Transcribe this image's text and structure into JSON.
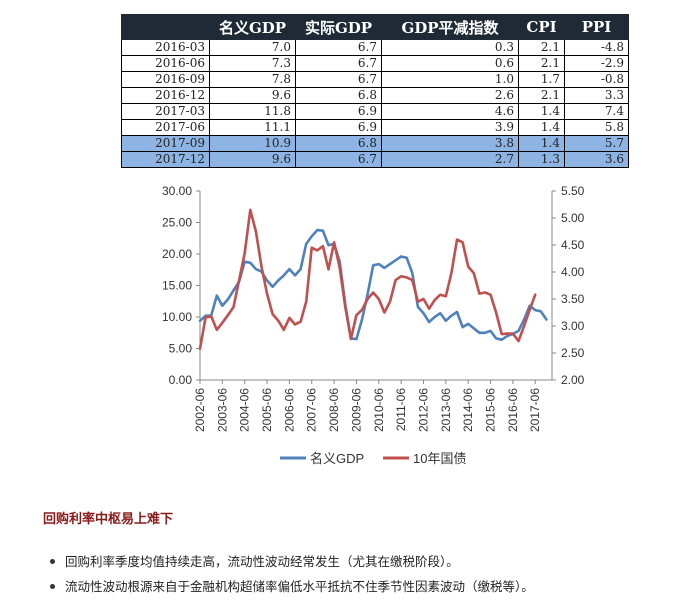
{
  "table": {
    "columns": [
      "",
      "名义GDP",
      "实际GDP",
      "GDP平减指数",
      "CPI",
      "PPI"
    ],
    "rows": [
      {
        "period": "2016-03",
        "nominal_gdp": "7.0",
        "real_gdp": "6.7",
        "deflator": "0.3",
        "cpi": "2.1",
        "ppi": "-4.8",
        "highlight": false
      },
      {
        "period": "2016-06",
        "nominal_gdp": "7.3",
        "real_gdp": "6.7",
        "deflator": "0.6",
        "cpi": "2.1",
        "ppi": "-2.9",
        "highlight": false
      },
      {
        "period": "2016-09",
        "nominal_gdp": "7.8",
        "real_gdp": "6.7",
        "deflator": "1.0",
        "cpi": "1.7",
        "ppi": "-0.8",
        "highlight": false
      },
      {
        "period": "2016-12",
        "nominal_gdp": "9.6",
        "real_gdp": "6.8",
        "deflator": "2.6",
        "cpi": "2.1",
        "ppi": "3.3",
        "highlight": false
      },
      {
        "period": "2017-03",
        "nominal_gdp": "11.8",
        "real_gdp": "6.9",
        "deflator": "4.6",
        "cpi": "1.4",
        "ppi": "7.4",
        "highlight": false
      },
      {
        "period": "2017-06",
        "nominal_gdp": "11.1",
        "real_gdp": "6.9",
        "deflator": "3.9",
        "cpi": "1.4",
        "ppi": "5.8",
        "highlight": false
      },
      {
        "period": "2017-09",
        "nominal_gdp": "10.9",
        "real_gdp": "6.8",
        "deflator": "3.8",
        "cpi": "1.4",
        "ppi": "5.7",
        "highlight": true
      },
      {
        "period": "2017-12",
        "nominal_gdp": "9.6",
        "real_gdp": "6.7",
        "deflator": "2.7",
        "cpi": "1.3",
        "ppi": "3.6",
        "highlight": true
      }
    ]
  },
  "chart_data": {
    "type": "line",
    "title": "",
    "x_tick_labels": [
      "2002-06",
      "2003-06",
      "2004-06",
      "2005-06",
      "2006-06",
      "2007-06",
      "2008-06",
      "2009-06",
      "2010-06",
      "2011-06",
      "2012-06",
      "2013-06",
      "2014-06",
      "2015-06",
      "2016-06",
      "2017-06"
    ],
    "x_range": [
      2002.25,
      2018.0
    ],
    "y_left": {
      "min": 0,
      "max": 30,
      "step": 5,
      "tick_labels": [
        "0.00",
        "5.00",
        "10.00",
        "15.00",
        "20.00",
        "25.00",
        "30.00"
      ]
    },
    "y_right": {
      "min": 2.0,
      "max": 5.5,
      "step": 0.5,
      "tick_labels": [
        "2.00",
        "2.50",
        "3.00",
        "3.50",
        "4.00",
        "4.50",
        "5.00",
        "5.50"
      ]
    },
    "legend_position": "bottom",
    "grid": false,
    "series": [
      {
        "name": "名义GDP",
        "axis": "left",
        "color": "#4f81bd",
        "points": [
          [
            2002.25,
            9.4
          ],
          [
            2002.5,
            10.2
          ],
          [
            2002.75,
            10.2
          ],
          [
            2003.0,
            13.4
          ],
          [
            2003.25,
            11.8
          ],
          [
            2003.5,
            12.8
          ],
          [
            2003.75,
            14.2
          ],
          [
            2004.0,
            15.6
          ],
          [
            2004.25,
            18.8
          ],
          [
            2004.5,
            18.6
          ],
          [
            2004.75,
            17.6
          ],
          [
            2005.0,
            17.2
          ],
          [
            2005.25,
            15.8
          ],
          [
            2005.5,
            14.8
          ],
          [
            2005.75,
            15.8
          ],
          [
            2006.0,
            16.6
          ],
          [
            2006.25,
            17.6
          ],
          [
            2006.5,
            16.6
          ],
          [
            2006.75,
            17.6
          ],
          [
            2007.0,
            21.6
          ],
          [
            2007.25,
            22.8
          ],
          [
            2007.5,
            23.8
          ],
          [
            2007.75,
            23.7
          ],
          [
            2008.0,
            21.4
          ],
          [
            2008.25,
            21.6
          ],
          [
            2008.5,
            18.8
          ],
          [
            2008.75,
            12.0
          ],
          [
            2009.0,
            6.6
          ],
          [
            2009.25,
            6.5
          ],
          [
            2009.5,
            9.6
          ],
          [
            2009.75,
            13.6
          ],
          [
            2010.0,
            18.2
          ],
          [
            2010.25,
            18.4
          ],
          [
            2010.5,
            17.8
          ],
          [
            2010.75,
            18.4
          ],
          [
            2011.0,
            19.0
          ],
          [
            2011.25,
            19.6
          ],
          [
            2011.5,
            19.4
          ],
          [
            2011.75,
            17.0
          ],
          [
            2012.0,
            11.6
          ],
          [
            2012.25,
            10.6
          ],
          [
            2012.5,
            9.2
          ],
          [
            2012.75,
            10.0
          ],
          [
            2013.0,
            10.6
          ],
          [
            2013.25,
            9.4
          ],
          [
            2013.5,
            10.2
          ],
          [
            2013.75,
            10.8
          ],
          [
            2014.0,
            8.4
          ],
          [
            2014.25,
            8.9
          ],
          [
            2014.5,
            8.2
          ],
          [
            2014.75,
            7.5
          ],
          [
            2015.0,
            7.5
          ],
          [
            2015.25,
            7.8
          ],
          [
            2015.5,
            6.6
          ],
          [
            2015.75,
            6.4
          ],
          [
            2016.0,
            7.0
          ],
          [
            2016.25,
            7.3
          ],
          [
            2016.5,
            7.8
          ],
          [
            2016.75,
            9.6
          ],
          [
            2017.0,
            11.8
          ],
          [
            2017.25,
            11.1
          ],
          [
            2017.5,
            10.9
          ],
          [
            2017.75,
            9.6
          ]
        ]
      },
      {
        "name": "10年国债",
        "axis": "right",
        "color": "#c0504d",
        "points": [
          [
            2002.25,
            2.58
          ],
          [
            2002.5,
            3.16
          ],
          [
            2002.75,
            3.18
          ],
          [
            2003.0,
            2.93
          ],
          [
            2003.25,
            3.06
          ],
          [
            2003.5,
            3.2
          ],
          [
            2003.75,
            3.35
          ],
          [
            2004.0,
            3.85
          ],
          [
            2004.25,
            4.35
          ],
          [
            2004.5,
            5.15
          ],
          [
            2004.75,
            4.75
          ],
          [
            2005.0,
            4.1
          ],
          [
            2005.25,
            3.6
          ],
          [
            2005.5,
            3.22
          ],
          [
            2005.75,
            3.1
          ],
          [
            2006.0,
            2.93
          ],
          [
            2006.25,
            3.15
          ],
          [
            2006.5,
            3.03
          ],
          [
            2006.75,
            3.08
          ],
          [
            2007.0,
            3.45
          ],
          [
            2007.25,
            4.45
          ],
          [
            2007.5,
            4.4
          ],
          [
            2007.75,
            4.48
          ],
          [
            2008.0,
            4.05
          ],
          [
            2008.25,
            4.55
          ],
          [
            2008.5,
            4.08
          ],
          [
            2008.75,
            3.35
          ],
          [
            2009.0,
            2.76
          ],
          [
            2009.25,
            3.2
          ],
          [
            2009.5,
            3.3
          ],
          [
            2009.75,
            3.5
          ],
          [
            2010.0,
            3.62
          ],
          [
            2010.25,
            3.5
          ],
          [
            2010.5,
            3.25
          ],
          [
            2010.75,
            3.45
          ],
          [
            2011.0,
            3.85
          ],
          [
            2011.25,
            3.92
          ],
          [
            2011.5,
            3.9
          ],
          [
            2011.75,
            3.85
          ],
          [
            2012.0,
            3.45
          ],
          [
            2012.25,
            3.5
          ],
          [
            2012.5,
            3.32
          ],
          [
            2012.75,
            3.48
          ],
          [
            2013.0,
            3.58
          ],
          [
            2013.25,
            3.55
          ],
          [
            2013.5,
            3.98
          ],
          [
            2013.75,
            4.6
          ],
          [
            2014.0,
            4.55
          ],
          [
            2014.25,
            4.1
          ],
          [
            2014.5,
            3.98
          ],
          [
            2014.75,
            3.6
          ],
          [
            2015.0,
            3.62
          ],
          [
            2015.25,
            3.58
          ],
          [
            2015.5,
            3.25
          ],
          [
            2015.75,
            2.85
          ],
          [
            2016.0,
            2.86
          ],
          [
            2016.25,
            2.86
          ],
          [
            2016.5,
            2.72
          ],
          [
            2016.75,
            3.0
          ],
          [
            2017.0,
            3.3
          ],
          [
            2017.25,
            3.58
          ]
        ]
      }
    ]
  },
  "notes": {
    "heading": "回购利率中枢易上难下",
    "bullets": [
      "回购利率季度均值持续走高，流动性波动经常发生（尤其在缴税阶段）。",
      "流动性波动根源来自于金融机构超储率偏低水平抵抗不住季节性因素波动（缴税等）。"
    ]
  }
}
